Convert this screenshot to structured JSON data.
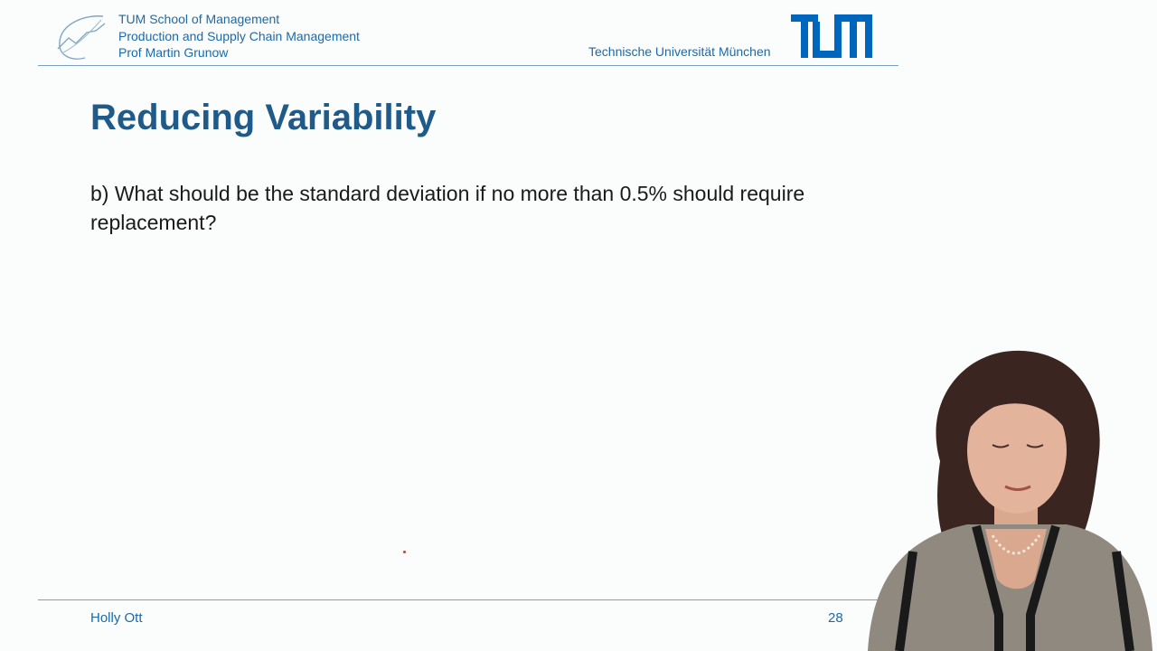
{
  "header": {
    "affiliation": [
      "TUM School of Management",
      "Production and Supply Chain Management",
      "Prof Martin Grunow"
    ],
    "university": "Technische Universität München",
    "chair_logo_icon": "chair-curve-logo-icon",
    "university_logo_icon": "tum-logo-icon"
  },
  "slide": {
    "title": "Reducing Variability",
    "question": "b) What should be the standard deviation if no more than 0.5% should require replacement?"
  },
  "footer": {
    "presenter": "Holly Ott",
    "page_number": "28"
  },
  "colors": {
    "tum_blue": "#0065bd",
    "title_blue": "#1f5a88",
    "text_blue": "#1b6aa8",
    "pointer_red": "#d23a2a"
  }
}
